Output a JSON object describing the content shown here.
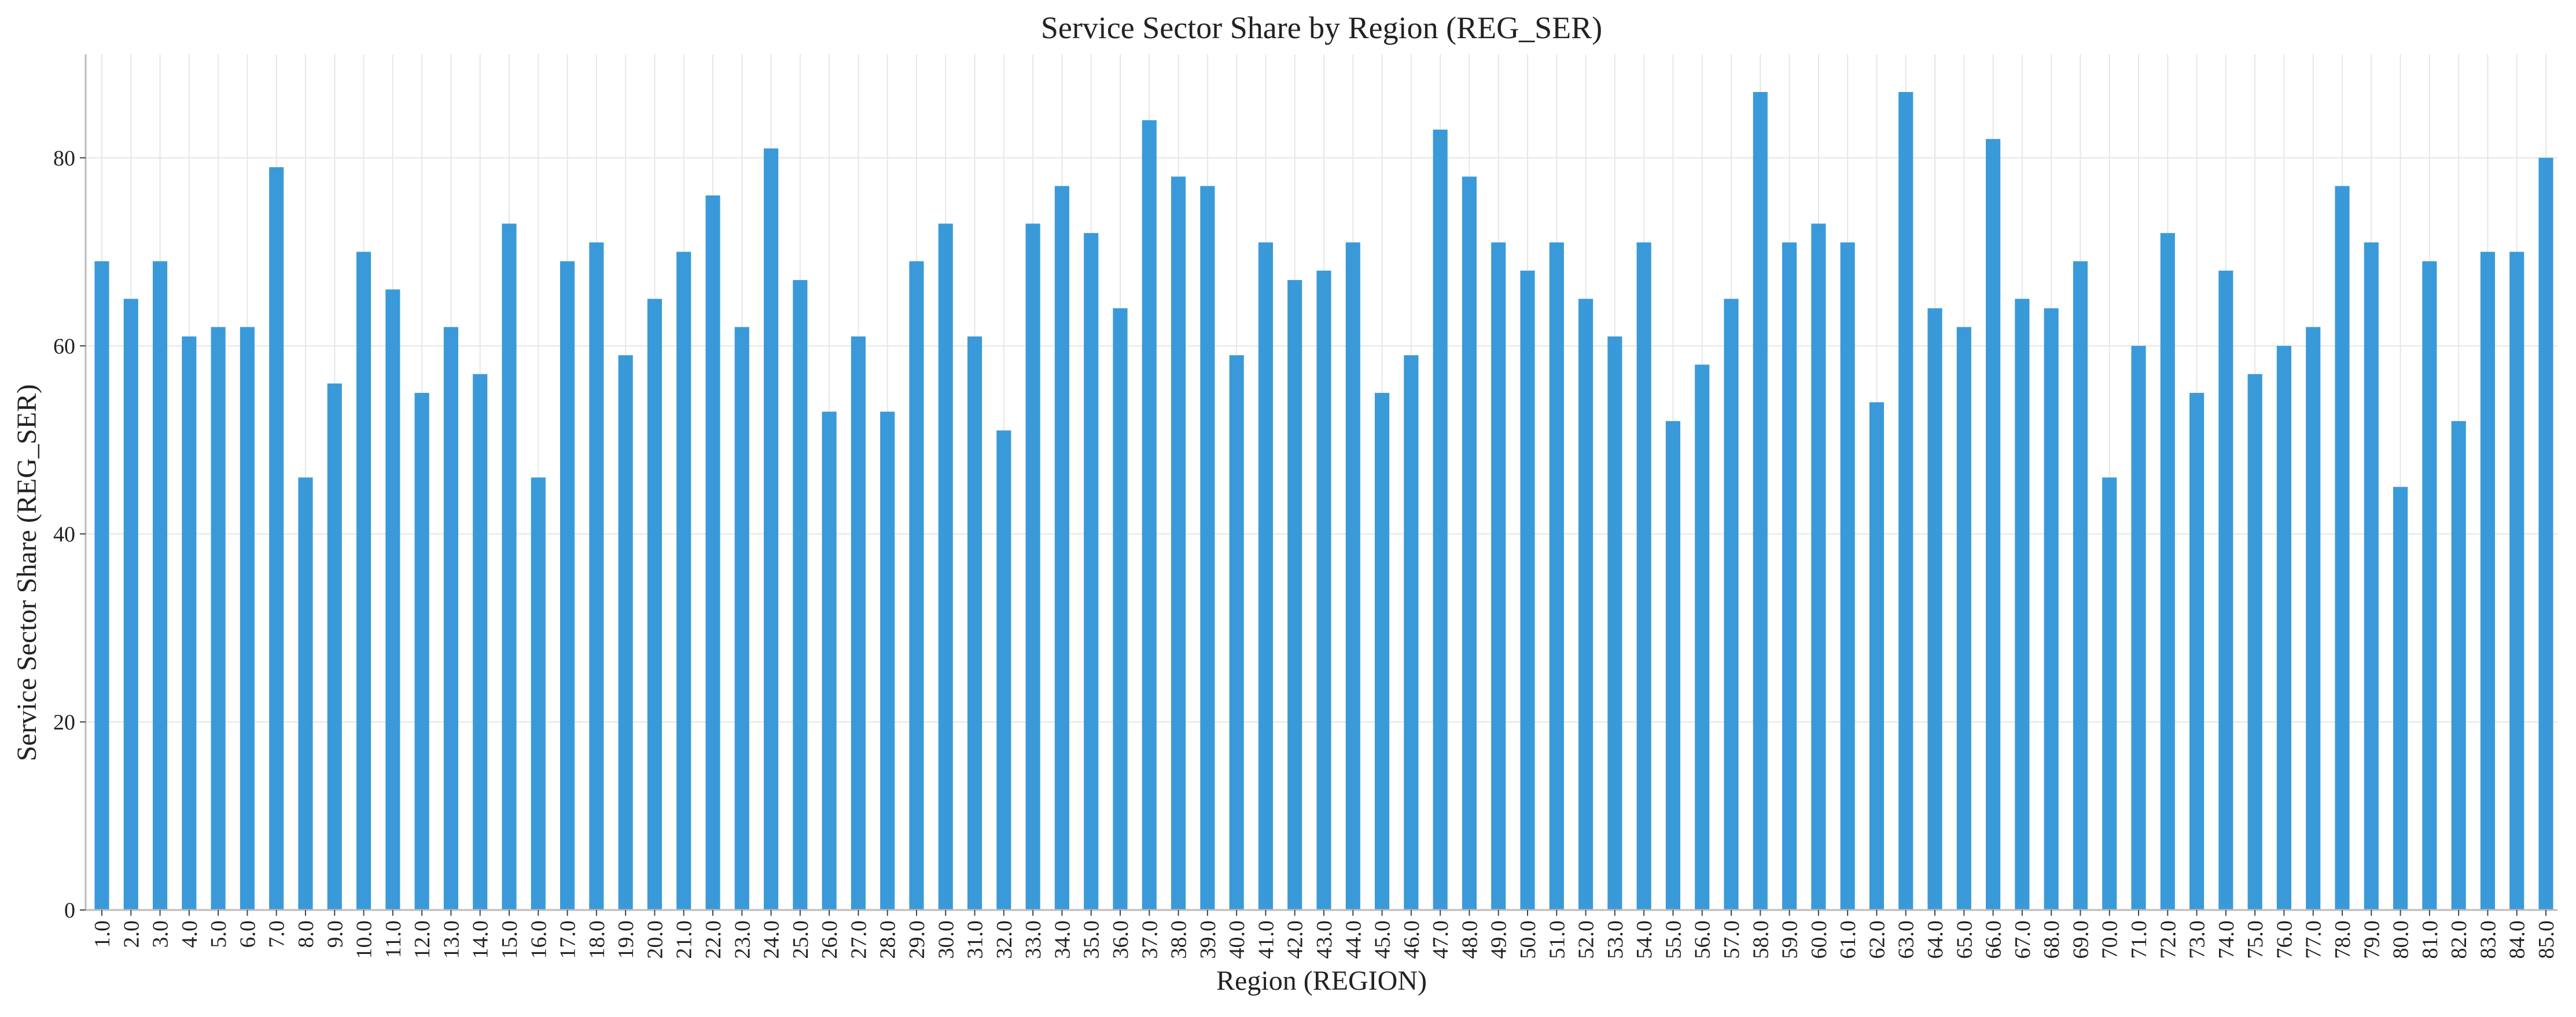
{
  "chart_data": {
    "type": "bar",
    "title": "Service Sector Share by Region (REG_SER)",
    "xlabel": "Region (REGION)",
    "ylabel": "Service Sector Share (REG_SER)",
    "ylim": [
      0,
      91
    ],
    "yticks": [
      0,
      20,
      40,
      60,
      80
    ],
    "grid": true,
    "bar_color": "#3a9ad9",
    "categories": [
      "1.0",
      "2.0",
      "3.0",
      "4.0",
      "5.0",
      "6.0",
      "7.0",
      "8.0",
      "9.0",
      "10.0",
      "11.0",
      "12.0",
      "13.0",
      "14.0",
      "15.0",
      "16.0",
      "17.0",
      "18.0",
      "19.0",
      "20.0",
      "21.0",
      "22.0",
      "23.0",
      "24.0",
      "25.0",
      "26.0",
      "27.0",
      "28.0",
      "29.0",
      "30.0",
      "31.0",
      "32.0",
      "33.0",
      "34.0",
      "35.0",
      "36.0",
      "37.0",
      "38.0",
      "39.0",
      "40.0",
      "41.0",
      "42.0",
      "43.0",
      "44.0",
      "45.0",
      "46.0",
      "47.0",
      "48.0",
      "49.0",
      "50.0",
      "51.0",
      "52.0",
      "53.0",
      "54.0",
      "55.0",
      "56.0",
      "57.0",
      "58.0",
      "59.0",
      "60.0",
      "61.0",
      "62.0",
      "63.0",
      "64.0",
      "65.0",
      "66.0",
      "67.0",
      "68.0",
      "69.0",
      "70.0",
      "71.0",
      "72.0",
      "73.0",
      "74.0",
      "75.0",
      "76.0",
      "77.0",
      "78.0",
      "79.0",
      "80.0",
      "81.0",
      "82.0",
      "83.0",
      "84.0",
      "85.0"
    ],
    "values": [
      69,
      65,
      69,
      61,
      62,
      62,
      79,
      46,
      56,
      70,
      66,
      55,
      62,
      57,
      73,
      46,
      69,
      71,
      59,
      65,
      70,
      76,
      62,
      81,
      67,
      53,
      61,
      53,
      69,
      73,
      61,
      51,
      73,
      77,
      72,
      64,
      84,
      78,
      77,
      59,
      71,
      67,
      68,
      71,
      55,
      59,
      83,
      78,
      71,
      68,
      71,
      65,
      61,
      71,
      52,
      58,
      65,
      87,
      71,
      73,
      71,
      54,
      87,
      64,
      62,
      82,
      65,
      64,
      69,
      46,
      60,
      72,
      55,
      68,
      57,
      60,
      62,
      77,
      71,
      45,
      69,
      52,
      70,
      70,
      80
    ]
  }
}
